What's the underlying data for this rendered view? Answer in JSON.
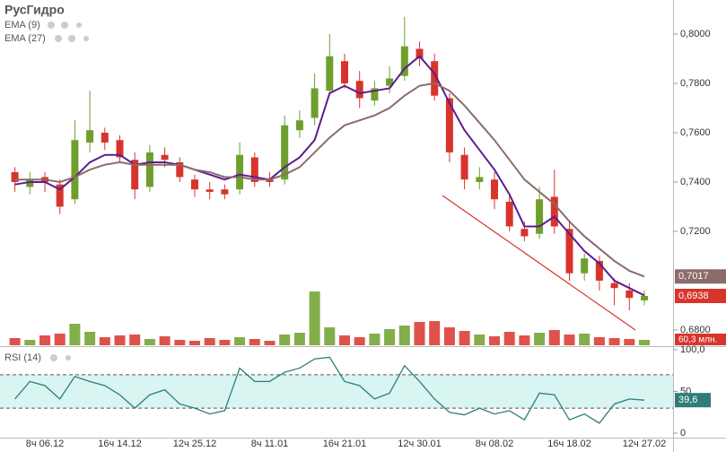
{
  "chart_data": [
    {
      "type": "candlestick",
      "title": "РусГидро",
      "categories": [
        null,
        null,
        "8ч 06.12",
        null,
        null,
        null,
        null,
        "16ч 14.12",
        null,
        null,
        null,
        null,
        "12ч 25.12",
        null,
        null,
        null,
        null,
        "8ч 11.01",
        null,
        null,
        null,
        null,
        "16ч 21.01",
        null,
        null,
        null,
        null,
        "12ч 30.01",
        null,
        null,
        null,
        null,
        "8ч 08.02",
        null,
        null,
        null,
        null,
        "16ч 18.02",
        null,
        null,
        null,
        null,
        "12ч 27.02"
      ],
      "open": [
        0.744,
        0.738,
        0.742,
        0.739,
        0.733,
        0.756,
        0.76,
        0.757,
        0.749,
        0.738,
        0.751,
        0.748,
        0.741,
        0.737,
        0.737,
        0.737,
        0.75,
        0.741,
        0.741,
        0.761,
        0.766,
        0.777,
        0.789,
        0.781,
        0.773,
        0.779,
        0.783,
        0.794,
        0.789,
        0.774,
        0.751,
        0.74,
        0.741,
        0.732,
        0.721,
        0.719,
        0.734,
        0.721,
        0.703,
        0.708,
        0.699,
        0.696,
        0.692
      ],
      "high": [
        0.746,
        0.744,
        0.744,
        0.741,
        0.765,
        0.777,
        0.762,
        0.759,
        0.752,
        0.755,
        0.754,
        0.75,
        0.743,
        0.74,
        0.739,
        0.756,
        0.752,
        0.744,
        0.767,
        0.769,
        0.784,
        0.8,
        0.792,
        0.785,
        0.781,
        0.787,
        0.807,
        0.797,
        0.792,
        0.776,
        0.754,
        0.746,
        0.744,
        0.735,
        0.724,
        0.738,
        0.745,
        0.724,
        0.711,
        0.71,
        0.701,
        0.699,
        0.696
      ],
      "low": [
        0.736,
        0.735,
        0.736,
        0.727,
        0.731,
        0.752,
        0.753,
        0.748,
        0.733,
        0.736,
        0.746,
        0.74,
        0.734,
        0.733,
        0.733,
        0.735,
        0.738,
        0.738,
        0.739,
        0.758,
        0.763,
        0.775,
        0.778,
        0.77,
        0.771,
        0.776,
        0.781,
        0.787,
        0.773,
        0.748,
        0.737,
        0.737,
        0.729,
        0.72,
        0.716,
        0.717,
        0.719,
        0.7,
        0.7,
        0.696,
        0.69,
        0.688,
        0.69
      ],
      "close": [
        0.74,
        0.741,
        0.74,
        0.73,
        0.757,
        0.761,
        0.756,
        0.75,
        0.737,
        0.752,
        0.749,
        0.742,
        0.737,
        0.736,
        0.735,
        0.751,
        0.74,
        0.74,
        0.763,
        0.765,
        0.778,
        0.791,
        0.78,
        0.774,
        0.778,
        0.782,
        0.795,
        0.79,
        0.775,
        0.752,
        0.741,
        0.742,
        0.733,
        0.722,
        0.718,
        0.733,
        0.722,
        0.703,
        0.709,
        0.7,
        0.697,
        0.693,
        0.6938
      ],
      "up_color": "#6e9f2c",
      "down_color": "#d8342c",
      "series": [
        {
          "name": "EMA (9)",
          "color": "#5b1e8f",
          "values": [
            0.739,
            0.74,
            0.74,
            0.737,
            0.742,
            0.748,
            0.751,
            0.751,
            0.747,
            0.748,
            0.748,
            0.747,
            0.745,
            0.743,
            0.741,
            0.743,
            0.742,
            0.741,
            0.746,
            0.75,
            0.757,
            0.776,
            0.779,
            0.776,
            0.777,
            0.778,
            0.786,
            0.791,
            0.784,
            0.772,
            0.761,
            0.753,
            0.745,
            0.735,
            0.722,
            0.722,
            0.726,
            0.719,
            0.712,
            0.707,
            0.7,
            0.697,
            0.694
          ]
        },
        {
          "name": "EMA (27)",
          "color": "#8c6b6b",
          "values": [
            0.741,
            0.741,
            0.741,
            0.74,
            0.742,
            0.745,
            0.747,
            0.748,
            0.747,
            0.747,
            0.747,
            0.747,
            0.745,
            0.744,
            0.742,
            0.742,
            0.741,
            0.741,
            0.743,
            0.746,
            0.752,
            0.758,
            0.763,
            0.765,
            0.767,
            0.77,
            0.775,
            0.779,
            0.78,
            0.777,
            0.771,
            0.764,
            0.757,
            0.749,
            0.741,
            0.736,
            0.731,
            0.724,
            0.718,
            0.713,
            0.708,
            0.704,
            0.7017
          ]
        }
      ],
      "volume": [
        80,
        60,
        110,
        130,
        240,
        150,
        90,
        110,
        120,
        70,
        100,
        60,
        50,
        80,
        60,
        90,
        70,
        50,
        120,
        140,
        600,
        200,
        110,
        90,
        130,
        180,
        220,
        260,
        270,
        200,
        160,
        120,
        100,
        150,
        110,
        140,
        170,
        120,
        130,
        90,
        80,
        70,
        60.3
      ],
      "volume_lim": [
        0,
        700
      ],
      "volume_label": {
        "value": 60.3,
        "label": "60,3 млн."
      },
      "ylim": [
        0.6738,
        0.8138
      ],
      "yticks": [
        {
          "value": 0.68,
          "label": "0,6800"
        },
        {
          "value": 0.72,
          "label": "0,7200"
        },
        {
          "value": 0.74,
          "label": "0,7400"
        },
        {
          "value": 0.76,
          "label": "0,7600"
        },
        {
          "value": 0.78,
          "label": "0,7800"
        },
        {
          "value": 0.8,
          "label": "0,8000"
        }
      ],
      "last_labels": [
        {
          "value": 0.7017,
          "label": "0,7017",
          "color": "#8c6b6b"
        },
        {
          "value": 0.6938,
          "label": "0,6938",
          "color": "#d8342c"
        }
      ]
    },
    {
      "type": "line",
      "title": "RSI (14)",
      "color": "#2e7d78",
      "band_color": "#d9f5f1",
      "values": [
        41,
        62,
        57,
        41,
        68,
        62,
        57,
        46,
        30,
        46,
        52,
        35,
        30,
        23,
        27,
        78,
        62,
        62,
        73,
        78,
        89,
        91,
        62,
        57,
        41,
        48,
        81,
        62,
        41,
        25,
        22,
        30,
        23,
        27,
        16,
        48,
        46,
        16,
        23,
        12,
        35,
        41,
        39.6
      ],
      "ylim": [
        0,
        100
      ],
      "yticks": [
        {
          "value": 100,
          "label": "100,0"
        },
        50,
        0
      ],
      "bands": [
        30,
        70
      ],
      "last_label": {
        "value": 39.6,
        "label": "39,6"
      }
    }
  ]
}
